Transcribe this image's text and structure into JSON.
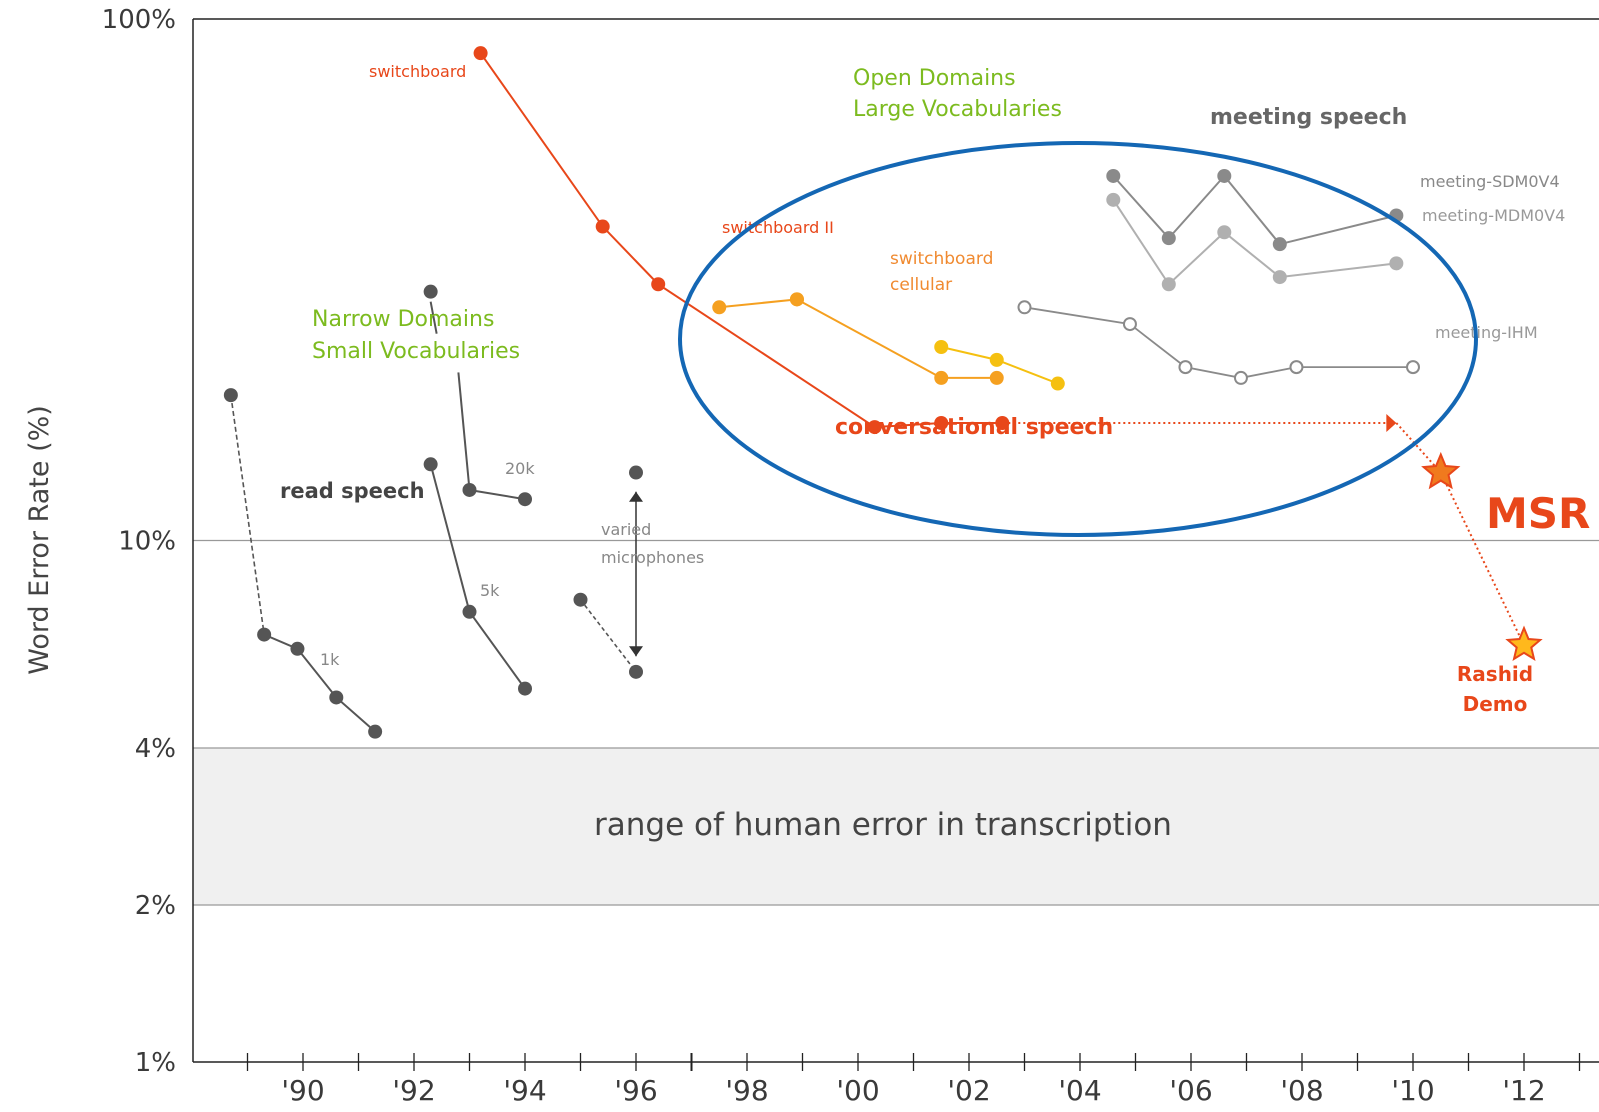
{
  "chart_data": {
    "type": "line",
    "xlabel": "",
    "ylabel": "Word Error Rate (%)",
    "y_scale": "log",
    "ylim": [
      1,
      100
    ],
    "xlim": [
      1988,
      2014
    ],
    "y_ticks": [
      {
        "value": 100,
        "label": "100%"
      },
      {
        "value": 10,
        "label": "10%"
      },
      {
        "value": 4,
        "label": "4%"
      },
      {
        "value": 2,
        "label": "2%"
      },
      {
        "value": 1,
        "label": "1%"
      }
    ],
    "x_ticks": [
      {
        "value": 1990,
        "label": "'90"
      },
      {
        "value": 1992,
        "label": "'92"
      },
      {
        "value": 1994,
        "label": "'94"
      },
      {
        "value": 1996,
        "label": "'96"
      },
      {
        "value": 1998,
        "label": "'98"
      },
      {
        "value": 2000,
        "label": "'00"
      },
      {
        "value": 2002,
        "label": "'02"
      },
      {
        "value": 2004,
        "label": "'04"
      },
      {
        "value": 2006,
        "label": "'06"
      },
      {
        "value": 2008,
        "label": "'08"
      },
      {
        "value": 2010,
        "label": "'10"
      },
      {
        "value": 2012,
        "label": "'12"
      }
    ],
    "band": {
      "from": 2,
      "to": 4,
      "label": "range of human error in transcription"
    },
    "series": [
      {
        "name": "switchboard",
        "color": "#e8471a",
        "marker": "filled",
        "points": [
          [
            1993.2,
            86
          ],
          [
            1995.4,
            40
          ],
          [
            1996.4,
            31
          ],
          [
            2000.3,
            16.5
          ],
          [
            2001.5,
            16.8
          ],
          [
            2002.6,
            16.8
          ]
        ]
      },
      {
        "name": "switchboard II",
        "color": "#f5a020",
        "marker": "filled",
        "points": [
          [
            1997.5,
            28
          ],
          [
            1998.9,
            29
          ]
        ]
      },
      {
        "name": "switchboard cellular",
        "color": "#f5a020",
        "marker": "filled",
        "points": [
          [
            1998.9,
            29
          ],
          [
            2001.5,
            20.5
          ],
          [
            2002.5,
            20.5
          ]
        ]
      },
      {
        "name": "switchboard cellular",
        "color": "#f5c010",
        "marker": "filled",
        "points": [
          [
            2001.5,
            23.5
          ],
          [
            2002.5,
            22.2
          ],
          [
            2003.6,
            20
          ]
        ]
      },
      {
        "name": "meeting-SDM0V4",
        "color": "#8a8a8a",
        "marker": "filled",
        "points": [
          [
            2004.6,
            50
          ],
          [
            2005.6,
            38
          ],
          [
            2006.6,
            50
          ],
          [
            2007.6,
            37
          ],
          [
            2009.7,
            42
          ]
        ]
      },
      {
        "name": "meeting-MDM0V4",
        "color": "#b0b0b0",
        "marker": "filled",
        "points": [
          [
            2004.6,
            45
          ],
          [
            2005.6,
            31
          ],
          [
            2006.6,
            39
          ],
          [
            2007.6,
            32
          ],
          [
            2009.7,
            34
          ]
        ]
      },
      {
        "name": "meeting-IHM",
        "color": "#8a8a8a",
        "marker": "open",
        "points": [
          [
            2003.0,
            28
          ],
          [
            2004.9,
            26
          ],
          [
            2005.9,
            21.5
          ],
          [
            2006.9,
            20.5
          ],
          [
            2007.9,
            21.5
          ],
          [
            2010.0,
            21.5
          ]
        ]
      },
      {
        "name": "read speech 1k",
        "color": "#555555",
        "marker": "filled",
        "points": [
          [
            1988.7,
            19
          ],
          [
            1989.3,
            6.6
          ],
          [
            1989.9,
            6.2
          ],
          [
            1990.6,
            5.0
          ],
          [
            1991.3,
            4.3
          ]
        ]
      },
      {
        "name": "read speech 5k",
        "color": "#555555",
        "marker": "filled",
        "points": [
          [
            1992.3,
            14
          ],
          [
            1993.0,
            7.3
          ],
          [
            1994.0,
            5.2
          ]
        ]
      },
      {
        "name": "read speech 20k",
        "color": "#555555",
        "marker": "filled",
        "points": [
          [
            1992.3,
            30
          ],
          [
            1993.0,
            12.5
          ],
          [
            1994.0,
            12.0
          ]
        ]
      },
      {
        "name": "varied microphones",
        "color": "#555555",
        "marker": "filled",
        "points": [
          [
            1995.0,
            7.7
          ],
          [
            1996.0,
            5.6
          ],
          [
            1996.0,
            13.5
          ]
        ]
      },
      {
        "name": "MSR",
        "color": "#f08020",
        "marker": "star",
        "points": [
          [
            2002.6,
            16.8
          ],
          [
            2009.7,
            16.8
          ],
          [
            2010.5,
            13.5
          ],
          [
            2012.0,
            6.3
          ]
        ]
      }
    ],
    "annotations": [
      {
        "text": "Open Domains"
      },
      {
        "text": "Large Vocabularies"
      },
      {
        "text": "meeting speech"
      },
      {
        "text": "Narrow Domains"
      },
      {
        "text": "Small Vocabularies"
      },
      {
        "text": "read speech"
      },
      {
        "text": "conversational speech"
      },
      {
        "text": "switchboard"
      },
      {
        "text": "switchboard II"
      },
      {
        "text": "switchboard"
      },
      {
        "text": "cellular"
      },
      {
        "text": "meeting-SDM0V4"
      },
      {
        "text": "meeting-MDM0V4"
      },
      {
        "text": "meeting-IHM"
      },
      {
        "text": "20k"
      },
      {
        "text": "5k"
      },
      {
        "text": "1k"
      },
      {
        "text": "varied"
      },
      {
        "text": "microphones"
      },
      {
        "text": "MSR"
      },
      {
        "text": "Rashid"
      },
      {
        "text": "Demo"
      }
    ],
    "highlight": "ellipse around conversational speech and meeting speech",
    "colors": {
      "conversational": "#e8471a",
      "msr": "#e8471a",
      "green": "#7cbb1f",
      "ellipse": "#1467b4",
      "band": "#f0f0f0"
    }
  }
}
